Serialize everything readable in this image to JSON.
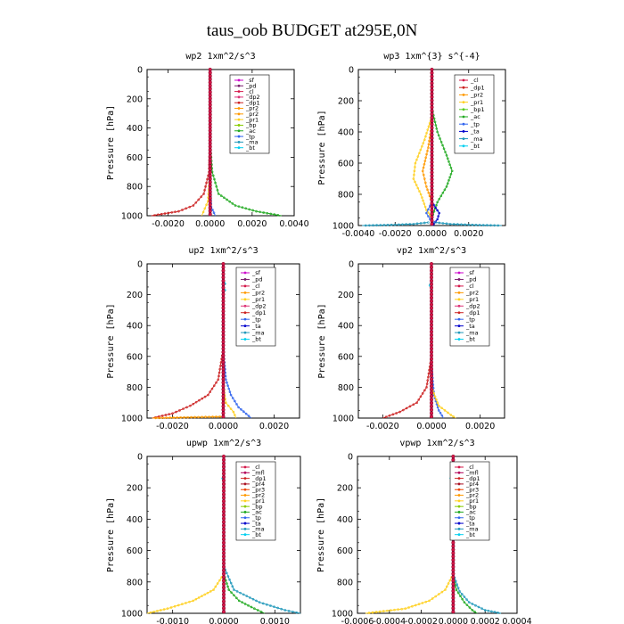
{
  "figure_title": "taus_oob  BUDGET at295E,0N",
  "colors": {
    "_sf": "#cc00cc",
    "_pd": "#7a1f6e",
    "_cl": "#d4184a",
    "_mfl": "#b3005a",
    "_dp2": "#dd3377",
    "_dp1": "#cc2222",
    "_pr4": "#aa1122",
    "_pr3": "#ee4400",
    "_pr2": "#ff9900",
    "_pr1": "#ffd020",
    "_bp": "#88cc00",
    "_bp1": "#55cc22",
    "_ac": "#22aa22",
    "_tp": "#3366ee",
    "_ta": "#0000cc",
    "_ma": "#2299bb",
    "_bt": "#00d0f0"
  },
  "chart_data": [
    {
      "type": "line",
      "title": "wp2   1xm^2/s^3",
      "ylabel": "Pressure [hPa]",
      "xlim": [
        -0.003,
        0.004
      ],
      "ylim": [
        1000,
        0
      ],
      "xticks": [
        "-0.0020",
        "0.0000",
        "0.0020",
        "0.0040"
      ],
      "xtick_values": [
        -0.002,
        0.0,
        0.002,
        0.004
      ],
      "yticks": [
        0,
        200,
        400,
        600,
        800,
        1000
      ],
      "legend": [
        "_sf",
        "_pd",
        "_cl",
        "_dp2",
        "_dp1",
        "_pr2",
        "_pr2",
        "_pr1",
        "_bp",
        "_ac",
        "_tp",
        "_ma",
        "_bt"
      ],
      "series": [
        {
          "name": "_dp1",
          "profile": [
            [
              450,
              0
            ],
            [
              700,
              -5e-05
            ],
            [
              850,
              -0.0003
            ],
            [
              930,
              -0.0008
            ],
            [
              970,
              -0.0015
            ],
            [
              1000,
              -0.0028
            ]
          ]
        },
        {
          "name": "_ac",
          "profile": [
            [
              500,
              0
            ],
            [
              700,
              0.0001
            ],
            [
              850,
              0.0004
            ],
            [
              930,
              0.0012
            ],
            [
              970,
              0.0022
            ],
            [
              1000,
              0.0034
            ]
          ]
        },
        {
          "name": "_pr1",
          "profile": [
            [
              700,
              0
            ],
            [
              900,
              -0.0001
            ],
            [
              1000,
              -0.0004
            ]
          ]
        },
        {
          "name": "_tp",
          "profile": [
            [
              800,
              0
            ],
            [
              940,
              5e-05
            ],
            [
              1000,
              0.00025
            ]
          ]
        },
        {
          "name": "_bt",
          "profile": [
            [
              100,
              0
            ],
            [
              130,
              -3e-05
            ],
            [
              150,
              3e-05
            ],
            [
              170,
              0
            ]
          ]
        }
      ]
    },
    {
      "type": "line",
      "title": "wp3   1xm^{3} s^{-4}",
      "ylabel": "Pressure [hPa]",
      "xlim": [
        -0.004,
        0.004
      ],
      "ylim": [
        1000,
        0
      ],
      "xticks": [
        "-0.0040",
        "-0.0020",
        "0.0000",
        "0.0020"
      ],
      "xtick_values": [
        -0.004,
        -0.002,
        0.0,
        0.002
      ],
      "yticks": [
        0,
        200,
        400,
        600,
        800,
        1000
      ],
      "legend": [
        "_cl",
        "_dp1",
        "_pr2",
        "_pr1",
        "_bp1",
        "_ac",
        "_tp",
        "_ta",
        "_ma",
        "_bt"
      ],
      "series": [
        {
          "name": "_pr1",
          "profile": [
            [
              300,
              0
            ],
            [
              450,
              -0.0004
            ],
            [
              600,
              -0.0009
            ],
            [
              700,
              -0.001
            ],
            [
              800,
              -0.0006
            ],
            [
              900,
              -0.0003
            ],
            [
              950,
              0
            ],
            [
              1000,
              5e-05
            ]
          ]
        },
        {
          "name": "_pr2",
          "profile": [
            [
              350,
              0
            ],
            [
              500,
              -0.0002
            ],
            [
              650,
              -0.0005
            ],
            [
              750,
              -0.0003
            ],
            [
              850,
              0
            ],
            [
              1000,
              0
            ]
          ]
        },
        {
          "name": "_ac",
          "profile": [
            [
              250,
              0
            ],
            [
              400,
              0.0003
            ],
            [
              550,
              0.0008
            ],
            [
              650,
              0.0011
            ],
            [
              750,
              0.0008
            ],
            [
              850,
              0.0003
            ],
            [
              950,
              0
            ],
            [
              1000,
              0
            ]
          ]
        },
        {
          "name": "_tp",
          "profile": [
            [
              850,
              0
            ],
            [
              920,
              -0.0003
            ],
            [
              960,
              -0.0001
            ],
            [
              980,
              0.0001
            ],
            [
              1000,
              0
            ]
          ]
        },
        {
          "name": "_ta",
          "profile": [
            [
              850,
              0
            ],
            [
              920,
              0.0004
            ],
            [
              960,
              0.0003
            ],
            [
              990,
              0.0001
            ],
            [
              1000,
              0
            ]
          ]
        },
        {
          "name": "_ma",
          "profile": [
            [
              980,
              -0.0002
            ],
            [
              990,
              -0.001
            ],
            [
              995,
              -0.002
            ],
            [
              1000,
              -0.0038
            ]
          ]
        },
        {
          "name": "_ma",
          "profile": [
            [
              980,
              0.0002
            ],
            [
              990,
              0.001
            ],
            [
              995,
              0.002
            ],
            [
              1000,
              0.0038
            ]
          ]
        }
      ]
    },
    {
      "type": "line",
      "title": "up2   1xm^2/s^3",
      "ylabel": "Pressure [hPa]",
      "xlim": [
        -0.003,
        0.003
      ],
      "ylim": [
        1000,
        0
      ],
      "xticks": [
        "-0.0020",
        "0.0000",
        "0.0020"
      ],
      "xtick_values": [
        -0.002,
        0.0,
        0.002
      ],
      "yticks": [
        0,
        200,
        400,
        600,
        800,
        1000
      ],
      "legend": [
        "_sf",
        "_pd",
        "_cl",
        "_pr2",
        "_pr1",
        "_dp2",
        "_dp1",
        "_tp",
        "_ta",
        "_ma",
        "_bt"
      ],
      "series": [
        {
          "name": "_dp1",
          "profile": [
            [
              550,
              0
            ],
            [
              750,
              -0.0002
            ],
            [
              850,
              -0.0006
            ],
            [
              920,
              -0.0013
            ],
            [
              970,
              -0.002
            ],
            [
              1000,
              -0.0028
            ]
          ]
        },
        {
          "name": "_tp",
          "profile": [
            [
              550,
              0
            ],
            [
              750,
              0.0001
            ],
            [
              850,
              0.0003
            ],
            [
              930,
              0.0006
            ],
            [
              1000,
              0.0011
            ]
          ]
        },
        {
          "name": "_pr1",
          "profile": [
            [
              800,
              0
            ],
            [
              900,
              0.0001
            ],
            [
              960,
              0.0004
            ],
            [
              1000,
              0.0005
            ]
          ]
        },
        {
          "name": "_pr2",
          "profile": [
            [
              990,
              0
            ],
            [
              1000,
              -0.0028
            ]
          ]
        },
        {
          "name": "_bt",
          "profile": [
            [
              110,
              2e-05
            ],
            [
              130,
              0.0001
            ],
            [
              150,
              -4e-05
            ],
            [
              170,
              0.0001
            ],
            [
              190,
              0
            ]
          ]
        }
      ]
    },
    {
      "type": "line",
      "title": "vp2   1xm^2/s^3",
      "ylabel": "Pressure [hPa]",
      "xlim": [
        -0.003,
        0.003
      ],
      "ylim": [
        1000,
        0
      ],
      "xticks": [
        "-0.0020",
        "0.0000",
        "0.0020"
      ],
      "xtick_values": [
        -0.002,
        0.0,
        0.002
      ],
      "yticks": [
        0,
        200,
        400,
        600,
        800,
        1000
      ],
      "legend": [
        "_sf",
        "_pd",
        "_cl",
        "_pr2",
        "_pr1",
        "_dp2",
        "_dp1",
        "_tp",
        "_ta",
        "_ma",
        "_bt"
      ],
      "series": [
        {
          "name": "_dp1",
          "profile": [
            [
              600,
              0
            ],
            [
              800,
              -0.0002
            ],
            [
              900,
              -0.0006
            ],
            [
              960,
              -0.0013
            ],
            [
              1000,
              -0.002
            ]
          ]
        },
        {
          "name": "_tp",
          "profile": [
            [
              650,
              0
            ],
            [
              850,
              0.0001
            ],
            [
              950,
              0.0003
            ],
            [
              1000,
              0.0005
            ]
          ]
        },
        {
          "name": "_pr1",
          "profile": [
            [
              800,
              0
            ],
            [
              920,
              0.0003
            ],
            [
              980,
              0.0008
            ],
            [
              1000,
              0.001
            ]
          ]
        },
        {
          "name": "_bt",
          "profile": [
            [
              110,
              0
            ],
            [
              140,
              -0.0001
            ],
            [
              160,
              0
            ],
            [
              180,
              5e-05
            ]
          ]
        }
      ]
    },
    {
      "type": "line",
      "title": "upwp   1xm^2/s^3",
      "ylabel": "Pressure [hPa]",
      "xlim": [
        -0.0015,
        0.0015
      ],
      "ylim": [
        1000,
        0
      ],
      "xticks": [
        "-0.0010",
        "0.0000",
        "0.0010"
      ],
      "xtick_values": [
        -0.001,
        0.0,
        0.001
      ],
      "yticks": [
        0,
        200,
        400,
        600,
        800,
        1000
      ],
      "legend": [
        "_cl",
        "_mfl",
        "_dp1",
        "_pr4",
        "_pr3",
        "_pr2",
        "_pr1",
        "_bp",
        "_ac",
        "_tp",
        "_ta",
        "_ma",
        "_bt"
      ],
      "series": [
        {
          "name": "_pr1",
          "profile": [
            [
              750,
              0
            ],
            [
              850,
              -0.0002
            ],
            [
              920,
              -0.0006
            ],
            [
              970,
              -0.0011
            ],
            [
              1000,
              -0.0015
            ]
          ]
        },
        {
          "name": "_ac",
          "profile": [
            [
              750,
              0
            ],
            [
              850,
              0.0001
            ],
            [
              920,
              0.0003
            ],
            [
              970,
              0.0006
            ],
            [
              1000,
              0.0008
            ]
          ]
        },
        {
          "name": "_ma",
          "profile": [
            [
              700,
              0
            ],
            [
              850,
              0.0002
            ],
            [
              930,
              0.0007
            ],
            [
              980,
              0.0012
            ],
            [
              1000,
              0.0015
            ]
          ]
        },
        {
          "name": "_bt",
          "profile": [
            [
              120,
              0
            ],
            [
              140,
              -4e-05
            ],
            [
              160,
              0
            ]
          ]
        }
      ]
    },
    {
      "type": "line",
      "title": "vpwp   1xm^2/s^3",
      "ylabel": "Pressure [hPa]",
      "xlim": [
        -0.0006,
        0.0004
      ],
      "ylim": [
        1000,
        0
      ],
      "xticks": [
        "-0.0006",
        "-0.0004",
        "-0.0002",
        "0.0000",
        "0.0002",
        "0.0004"
      ],
      "xtick_values": [
        -0.0006,
        -0.0004,
        -0.0002,
        0.0,
        0.0002,
        0.0004
      ],
      "yticks": [
        0,
        200,
        400,
        600,
        800,
        1000
      ],
      "legend": [
        "_cl",
        "_mfl",
        "_dp1",
        "_pr4",
        "_pr3",
        "_pr2",
        "_pr1",
        "_bp",
        "_ac",
        "_tp",
        "_ta",
        "_ma",
        "_bt"
      ],
      "series": [
        {
          "name": "_pr1",
          "profile": [
            [
              750,
              0
            ],
            [
              850,
              -5e-05
            ],
            [
              920,
              -0.00015
            ],
            [
              970,
              -0.0003
            ],
            [
              1000,
              -0.00055
            ]
          ]
        },
        {
          "name": "_ac",
          "profile": [
            [
              750,
              0
            ],
            [
              850,
              2e-05
            ],
            [
              930,
              7e-05
            ],
            [
              980,
              0.00012
            ],
            [
              1000,
              0.00015
            ]
          ]
        },
        {
          "name": "_ma",
          "profile": [
            [
              750,
              0
            ],
            [
              860,
              4e-05
            ],
            [
              930,
              0.0001
            ],
            [
              980,
              0.0002
            ],
            [
              1000,
              0.0003
            ]
          ]
        },
        {
          "name": "_bt",
          "profile": [
            [
              100,
              0
            ],
            [
              140,
              -2e-05
            ],
            [
              160,
              2e-05
            ],
            [
              180,
              0
            ]
          ]
        }
      ]
    }
  ]
}
